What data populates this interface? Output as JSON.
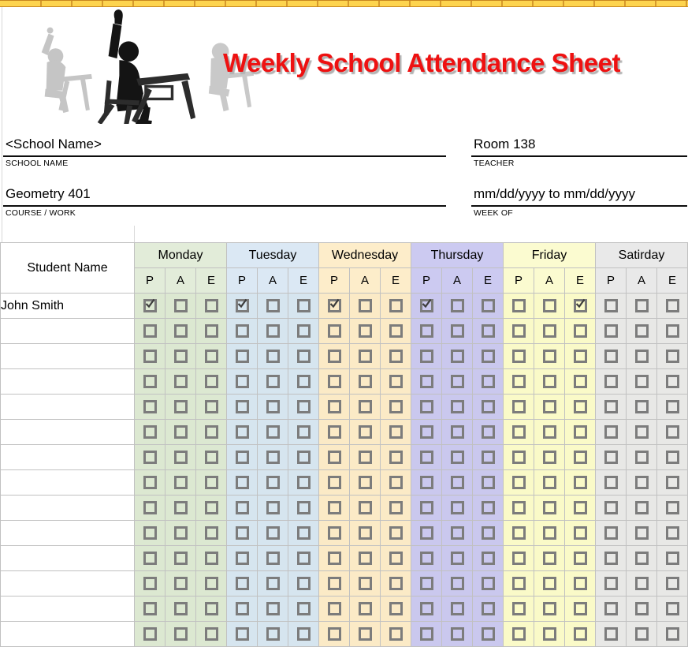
{
  "window": {
    "top_bar_color": "#fdd44f",
    "top_bar_tick_color": "#d6992b",
    "top_bar_border_color": "#c8871f"
  },
  "header": {
    "title": "Weekly School Attendance Sheet",
    "title_color": "#ee1111",
    "clipart": "students-at-desks-silhouette"
  },
  "fields": [
    {
      "id": "school",
      "value": "<School Name>",
      "label": "SCHOOL NAME"
    },
    {
      "id": "teacher",
      "value": "Room 138",
      "label": "TEACHER"
    },
    {
      "id": "course",
      "value": "Geometry 401",
      "label": "COURSE / WORK"
    },
    {
      "id": "week",
      "value": "mm/dd/yyyy to mm/dd/yyyy",
      "label": "WEEK OF"
    }
  ],
  "table": {
    "student_col_header": "Student Name",
    "subcolumns": [
      "P",
      "A",
      "E"
    ],
    "days": [
      {
        "name": "Monday",
        "header_color": "#e2ecd9",
        "body_color": "#dce8d1"
      },
      {
        "name": "Tuesday",
        "header_color": "#dbe8f4",
        "body_color": "#d6e5ef"
      },
      {
        "name": "Wednesday",
        "header_color": "#fdedca",
        "body_color": "#fbeac6"
      },
      {
        "name": "Thursday",
        "header_color": "#cccaf1",
        "body_color": "#cac8ee"
      },
      {
        "name": "Friday",
        "header_color": "#fbfbd0",
        "body_color": "#fafac8"
      },
      {
        "name": "Satirday",
        "header_color": "#e9e9e9",
        "body_color": "#e8e8e6"
      }
    ],
    "rows": [
      {
        "student": "John Smith",
        "checks": {
          "Monday": [
            "P"
          ],
          "Tuesday": [
            "P"
          ],
          "Wednesday": [
            "P"
          ],
          "Thursday": [
            "P"
          ],
          "Friday": [
            "E"
          ],
          "Satirday": []
        }
      }
    ],
    "empty_rows": 13,
    "checkbox_border_color": "#7c7c7c",
    "check_color": "#3d3d3d"
  }
}
